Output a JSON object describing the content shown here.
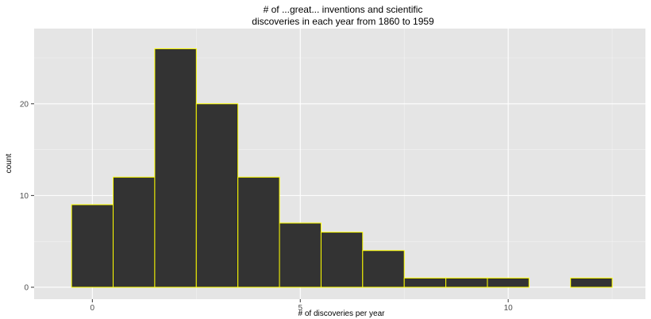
{
  "chart_data": {
    "type": "bar",
    "title_lines": [
      "# of ...great... inventions and scientific",
      "discoveries in each year from 1860 to 1959"
    ],
    "xlabel": "# of discoveries per year",
    "ylabel": "count",
    "x": [
      0,
      1,
      2,
      3,
      4,
      5,
      6,
      7,
      8,
      9,
      10,
      11,
      12
    ],
    "values": [
      9,
      12,
      26,
      20,
      12,
      7,
      6,
      4,
      1,
      1,
      1,
      0,
      1
    ],
    "bin_width": 1,
    "xlim": [
      -1.4,
      13.3
    ],
    "ylim": [
      -1.3,
      28.2
    ],
    "x_ticks": [
      0,
      5,
      10
    ],
    "y_ticks": [
      0,
      10,
      20
    ],
    "grid": true,
    "colors": {
      "panel_background": "#e5e5e5",
      "grid_line": "#ffffff",
      "bar_fill": "#333333",
      "bar_outline": "#ffff00"
    }
  }
}
